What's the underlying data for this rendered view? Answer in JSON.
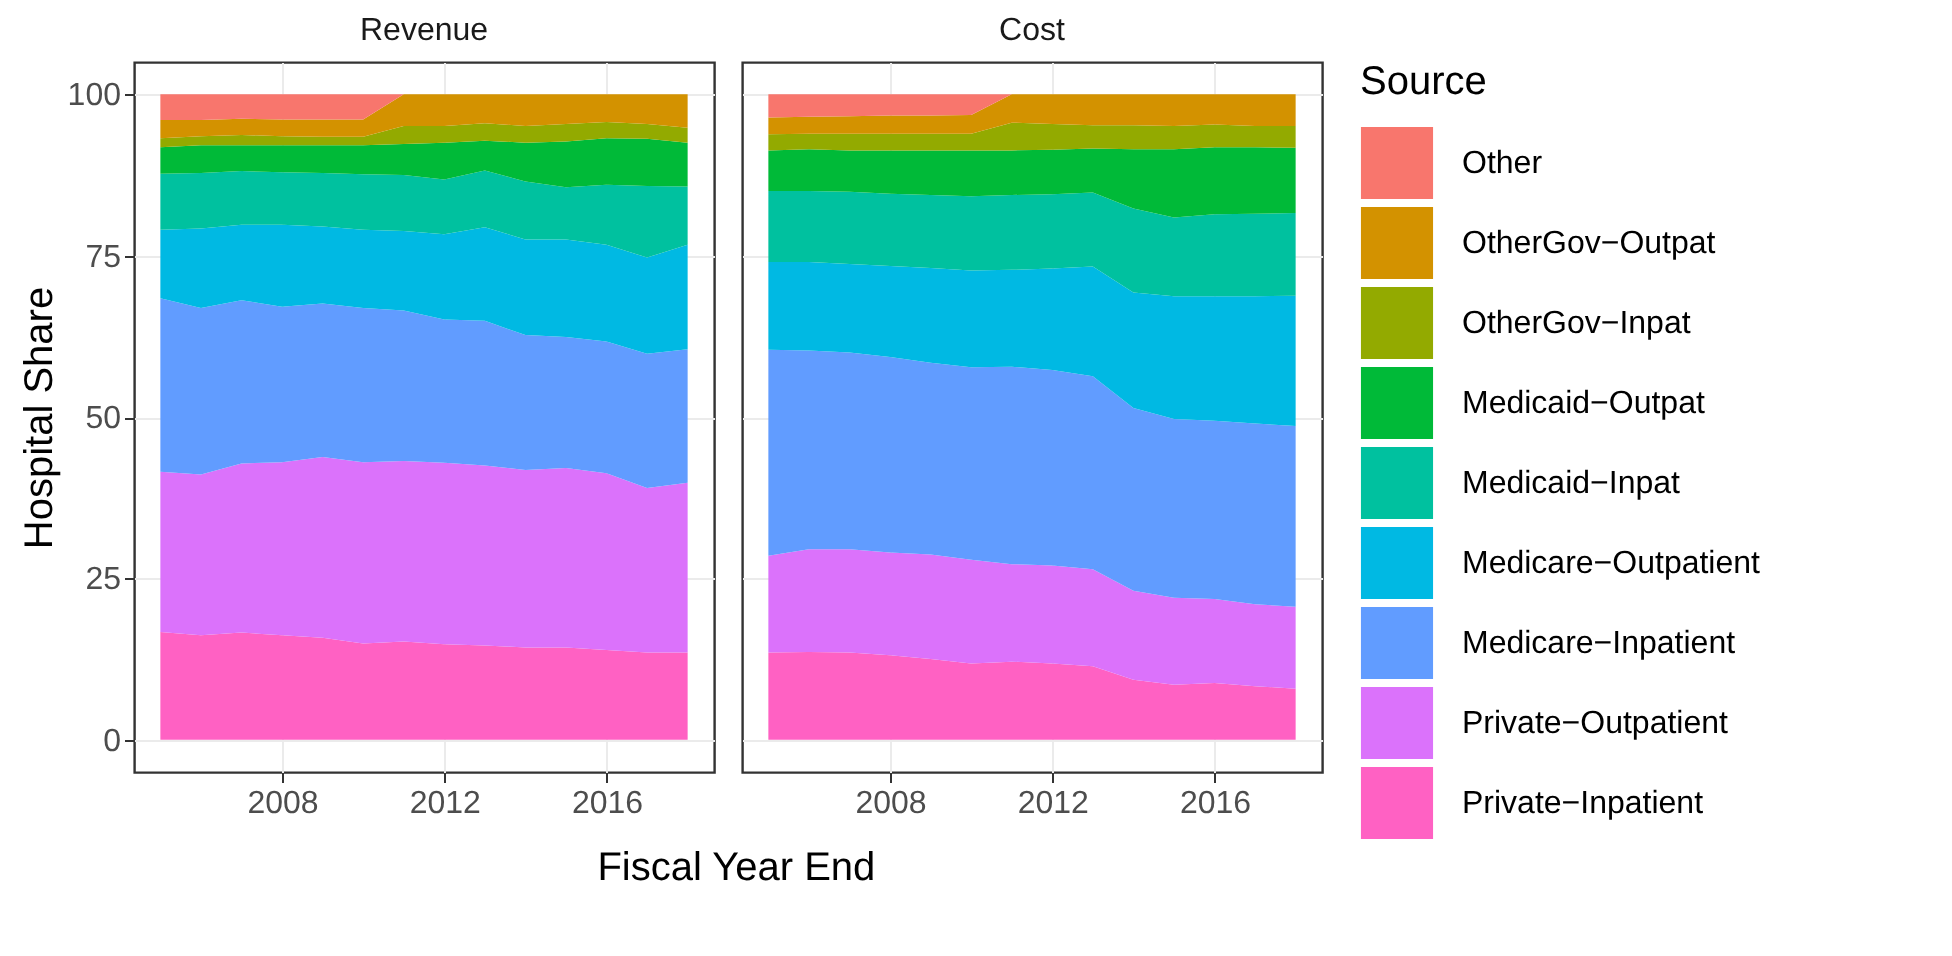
{
  "chart_data": [
    {
      "type": "area",
      "title": "Revenue",
      "xlabel": "Fiscal Year End",
      "ylabel": "Hospital Share",
      "legend_title": "Source",
      "legend": "right",
      "stacked": true,
      "grid": true,
      "x": [
        2005,
        2006,
        2007,
        2008,
        2009,
        2010,
        2011,
        2012,
        2013,
        2014,
        2015,
        2016,
        2017,
        2018
      ],
      "xlim": [
        2004.35,
        2018.65
      ],
      "xticks": [
        2008,
        2012,
        2016
      ],
      "ylim": [
        -5,
        105
      ],
      "yticks": [
        0,
        25,
        50,
        75,
        100
      ],
      "series": [
        {
          "name": "Private−Inpatient",
          "color": "#ff61c3",
          "values": [
            16.7,
            16.2,
            16.6,
            16.2,
            15.8,
            14.9,
            15.2,
            14.8,
            14.6,
            14.3,
            14.3,
            13.9,
            13.5,
            13.5
          ]
        },
        {
          "name": "Private−Outpatient",
          "color": "#db72fb",
          "values": [
            24.8,
            24.9,
            26.2,
            26.8,
            28.0,
            28.1,
            28.0,
            28.1,
            27.9,
            27.5,
            27.8,
            27.4,
            25.5,
            26.3
          ]
        },
        {
          "name": "Medicare−Inpatient",
          "color": "#619cff",
          "values": [
            26.9,
            25.8,
            25.3,
            24.1,
            23.8,
            23.9,
            23.3,
            22.2,
            22.4,
            20.9,
            20.3,
            20.4,
            20.8,
            20.7
          ]
        },
        {
          "name": "Medicare−Outpatient",
          "color": "#00b9e3",
          "values": [
            10.6,
            12.3,
            11.7,
            12.7,
            11.9,
            12.1,
            12.3,
            13.2,
            14.5,
            14.8,
            15.1,
            15.0,
            14.9,
            16.2
          ]
        },
        {
          "name": "Medicaid−Inpat",
          "color": "#00c19f",
          "values": [
            8.7,
            8.6,
            8.3,
            8.1,
            8.3,
            8.6,
            8.7,
            8.5,
            8.8,
            9.0,
            8.1,
            9.3,
            11.1,
            9.0
          ]
        },
        {
          "name": "Medicaid−Outpat",
          "color": "#00ba38",
          "values": [
            4.1,
            4.3,
            4.0,
            4.2,
            4.3,
            4.5,
            4.8,
            5.7,
            4.6,
            6.0,
            7.1,
            7.2,
            7.3,
            6.8
          ]
        },
        {
          "name": "OtherGov−Inpat",
          "color": "#93aa00",
          "values": [
            1.4,
            1.4,
            1.6,
            1.4,
            1.3,
            1.3,
            2.8,
            2.6,
            2.7,
            2.6,
            2.7,
            2.5,
            2.3,
            2.3
          ]
        },
        {
          "name": "OtherGov−Outpat",
          "color": "#d39200",
          "values": [
            2.8,
            2.5,
            2.5,
            2.6,
            2.7,
            2.7,
            4.9,
            4.9,
            4.5,
            4.9,
            4.6,
            4.3,
            4.6,
            5.2
          ]
        },
        {
          "name": "Other",
          "color": "#f8766d",
          "values": [
            4.0,
            4.0,
            3.8,
            3.9,
            3.9,
            3.9,
            0,
            0,
            0,
            0,
            0,
            0,
            0,
            0
          ]
        }
      ]
    },
    {
      "type": "area",
      "title": "Cost",
      "stacked": true,
      "grid": true,
      "tick_labels": "x",
      "x": [
        2005,
        2006,
        2007,
        2008,
        2009,
        2010,
        2011,
        2012,
        2013,
        2014,
        2015,
        2016,
        2017,
        2018
      ],
      "xlim": [
        2004.35,
        2018.65
      ],
      "xticks": [
        2008,
        2012,
        2016
      ],
      "ylim": [
        -5,
        105
      ],
      "yticks": [
        0,
        25,
        50,
        75,
        100
      ],
      "series": [
        {
          "name": "Private−Inpatient",
          "color": "#ff61c3",
          "values": [
            13.5,
            13.6,
            13.5,
            13.1,
            12.5,
            11.8,
            12.1,
            11.8,
            11.4,
            9.3,
            8.5,
            8.8,
            8.3,
            7.9
          ]
        },
        {
          "name": "Private−Outpatient",
          "color": "#db72fb",
          "values": [
            15.0,
            15.9,
            16.0,
            15.9,
            16.2,
            16.1,
            15.1,
            15.2,
            15.0,
            13.8,
            13.5,
            13.0,
            12.7,
            12.7
          ]
        },
        {
          "name": "Medicare−Inpatient",
          "color": "#619cff",
          "values": [
            31.9,
            30.8,
            30.5,
            30.3,
            29.7,
            29.8,
            30.6,
            30.3,
            29.9,
            28.3,
            27.7,
            27.6,
            28.0,
            28.0
          ]
        },
        {
          "name": "Medicare−Outpatient",
          "color": "#00b9e3",
          "values": [
            13.6,
            13.7,
            13.7,
            14.1,
            14.7,
            15.0,
            15.0,
            15.7,
            17.0,
            17.9,
            19.0,
            19.3,
            19.7,
            20.2
          ]
        },
        {
          "name": "Medicaid−Inpat",
          "color": "#00c19f",
          "values": [
            11.0,
            11.0,
            11.2,
            11.2,
            11.3,
            11.5,
            11.6,
            11.5,
            11.5,
            13.0,
            12.2,
            12.7,
            12.8,
            12.8
          ]
        },
        {
          "name": "Medicaid−Outpat",
          "color": "#00ba38",
          "values": [
            6.3,
            6.5,
            6.4,
            6.7,
            6.9,
            7.1,
            6.9,
            6.9,
            6.8,
            9.2,
            10.6,
            10.4,
            10.3,
            10.1
          ]
        },
        {
          "name": "OtherGov−Inpat",
          "color": "#93aa00",
          "values": [
            2.5,
            2.4,
            2.6,
            2.6,
            2.6,
            2.6,
            4.3,
            4.0,
            3.6,
            3.7,
            3.6,
            3.5,
            3.3,
            3.4
          ]
        },
        {
          "name": "OtherGov−Outpat",
          "color": "#d39200",
          "values": [
            2.6,
            2.6,
            2.7,
            2.8,
            2.8,
            2.9,
            4.4,
            4.6,
            4.8,
            4.8,
            4.9,
            4.7,
            4.9,
            4.9
          ]
        },
        {
          "name": "Other",
          "color": "#f8766d",
          "values": [
            3.6,
            3.5,
            3.4,
            3.3,
            3.3,
            3.2,
            0,
            0,
            0,
            0,
            0,
            0,
            0,
            0
          ]
        }
      ]
    }
  ]
}
